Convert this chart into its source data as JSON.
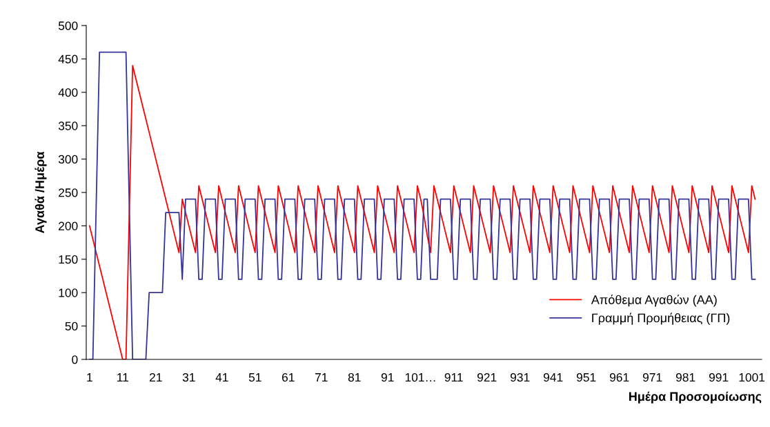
{
  "chart_data": {
    "type": "line",
    "xlabel": "Ημέρα Προσομοίωσης",
    "ylabel": "Αγαθά /Ημέρα",
    "categories": [
      "1",
      null,
      null,
      null,
      null,
      null,
      null,
      null,
      null,
      null,
      "11",
      null,
      null,
      null,
      null,
      null,
      null,
      null,
      null,
      null,
      "21",
      null,
      null,
      null,
      null,
      null,
      null,
      null,
      null,
      null,
      "31",
      null,
      null,
      null,
      null,
      null,
      null,
      null,
      null,
      null,
      "41",
      null,
      null,
      null,
      null,
      null,
      null,
      null,
      null,
      null,
      "51",
      null,
      null,
      null,
      null,
      null,
      null,
      null,
      null,
      null,
      "61",
      null,
      null,
      null,
      null,
      null,
      null,
      null,
      null,
      null,
      "71",
      null,
      null,
      null,
      null,
      null,
      null,
      null,
      null,
      null,
      "81",
      null,
      null,
      null,
      null,
      null,
      null,
      null,
      null,
      null,
      "91",
      null,
      null,
      null,
      null,
      null,
      null,
      null,
      null,
      null,
      "101…",
      null,
      null,
      null,
      null,
      null,
      null,
      null,
      null,
      null,
      "911",
      null,
      null,
      null,
      null,
      null,
      null,
      null,
      null,
      null,
      "921",
      null,
      null,
      null,
      null,
      null,
      null,
      null,
      null,
      null,
      "931",
      null,
      null,
      null,
      null,
      null,
      null,
      null,
      null,
      null,
      "941",
      null,
      null,
      null,
      null,
      null,
      null,
      null,
      null,
      null,
      "951",
      null,
      null,
      null,
      null,
      null,
      null,
      null,
      null,
      null,
      "961",
      null,
      null,
      null,
      null,
      null,
      null,
      null,
      null,
      null,
      "971",
      null,
      null,
      null,
      null,
      null,
      null,
      null,
      null,
      null,
      "981",
      null,
      null,
      null,
      null,
      null,
      null,
      null,
      null,
      null,
      "991",
      null,
      null,
      null,
      null,
      null,
      null,
      null,
      null,
      null,
      "1001",
      null
    ],
    "series": [
      {
        "name": "Απόθεμα Αγαθών (ΑΑ)",
        "color": "#ff0000",
        "values": [
          200,
          180,
          160,
          140,
          120,
          100,
          80,
          60,
          40,
          20,
          0,
          0,
          220,
          440,
          420,
          400,
          380,
          360,
          340,
          320,
          300,
          280,
          260,
          240,
          220,
          200,
          180,
          160,
          240,
          220,
          200,
          180,
          160,
          260,
          240,
          220,
          200,
          180,
          160,
          260,
          240,
          220,
          200,
          180,
          160,
          260,
          240,
          220,
          200,
          180,
          160,
          260,
          240,
          220,
          200,
          180,
          160,
          260,
          240,
          220,
          200,
          180,
          160,
          260,
          240,
          220,
          200,
          180,
          160,
          260,
          240,
          220,
          200,
          180,
          160,
          260,
          240,
          220,
          200,
          180,
          160,
          260,
          240,
          220,
          200,
          180,
          160,
          260,
          240,
          220,
          200,
          180,
          160,
          260,
          240,
          220,
          200,
          180,
          160,
          260,
          240,
          215,
          185,
          160,
          260,
          240,
          220,
          200,
          180,
          160,
          260,
          240,
          220,
          200,
          180,
          160,
          260,
          240,
          220,
          200,
          180,
          160,
          260,
          240,
          220,
          200,
          180,
          160,
          260,
          240,
          220,
          200,
          180,
          160,
          260,
          240,
          220,
          200,
          180,
          160,
          260,
          240,
          220,
          200,
          180,
          160,
          260,
          240,
          220,
          200,
          180,
          160,
          260,
          240,
          220,
          200,
          180,
          160,
          260,
          240,
          220,
          200,
          180,
          160,
          260,
          240,
          220,
          200,
          180,
          160,
          260,
          240,
          220,
          200,
          180,
          160,
          260,
          240,
          220,
          200,
          180,
          160,
          260,
          240,
          220,
          200,
          180,
          160,
          260,
          240,
          220,
          200,
          180,
          160,
          260,
          240,
          220,
          200,
          180,
          160,
          260,
          240
        ]
      },
      {
        "name": "Γραμμή Προμήθειας (ΓΠ)",
        "color": "#333399",
        "values": [
          0,
          0,
          230,
          460,
          460,
          460,
          460,
          460,
          460,
          460,
          460,
          460,
          230,
          0,
          0,
          0,
          0,
          0,
          100,
          100,
          100,
          100,
          100,
          220,
          220,
          220,
          220,
          220,
          120,
          240,
          240,
          240,
          240,
          120,
          120,
          240,
          240,
          240,
          240,
          120,
          120,
          240,
          240,
          240,
          240,
          120,
          120,
          240,
          240,
          240,
          240,
          120,
          120,
          240,
          240,
          240,
          240,
          120,
          120,
          240,
          240,
          240,
          240,
          120,
          120,
          240,
          240,
          240,
          240,
          120,
          120,
          240,
          240,
          240,
          240,
          120,
          120,
          240,
          240,
          240,
          240,
          120,
          120,
          240,
          240,
          240,
          240,
          120,
          120,
          240,
          240,
          240,
          240,
          120,
          120,
          240,
          240,
          240,
          240,
          120,
          120,
          240,
          240,
          120,
          120,
          120,
          240,
          240,
          240,
          240,
          120,
          120,
          240,
          240,
          240,
          240,
          120,
          120,
          240,
          240,
          240,
          240,
          120,
          120,
          240,
          240,
          240,
          240,
          120,
          120,
          240,
          240,
          240,
          240,
          120,
          120,
          240,
          240,
          240,
          240,
          120,
          120,
          240,
          240,
          240,
          240,
          120,
          120,
          240,
          240,
          240,
          240,
          120,
          120,
          240,
          240,
          240,
          240,
          120,
          120,
          240,
          240,
          240,
          240,
          120,
          120,
          240,
          240,
          240,
          240,
          120,
          120,
          240,
          240,
          240,
          240,
          120,
          120,
          240,
          240,
          240,
          240,
          120,
          120,
          240,
          240,
          240,
          240,
          120,
          120,
          240,
          240,
          240,
          240,
          120,
          120,
          240,
          240,
          240,
          240,
          120,
          120
        ]
      }
    ],
    "ylim": [
      0,
      500
    ],
    "yticks": [
      0,
      50,
      100,
      150,
      200,
      250,
      300,
      350,
      400,
      450,
      500
    ],
    "grid": false,
    "legend": "bottom right",
    "marker": "none",
    "line_style": "solid"
  }
}
